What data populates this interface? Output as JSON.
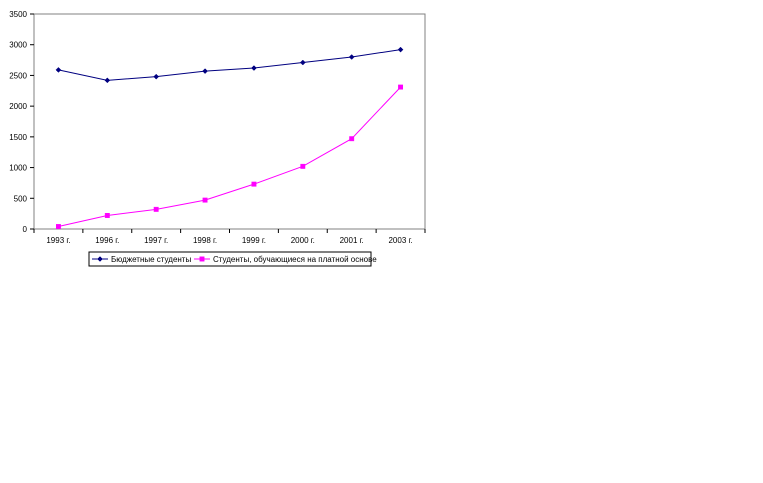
{
  "chart_data": {
    "type": "line",
    "categories": [
      "1993 г.",
      "1996 г.",
      "1997 г.",
      "1998 г.",
      "1999 г.",
      "2000 г.",
      "2001 г.",
      "2003 г."
    ],
    "series": [
      {
        "name": "Бюджетные студенты",
        "values": [
          2590,
          2420,
          2480,
          2570,
          2620,
          2710,
          2800,
          2920
        ],
        "color": "#000080",
        "marker": "diamond"
      },
      {
        "name": "Студенты, обучающиеся на платной основе",
        "values": [
          40,
          220,
          320,
          470,
          730,
          1020,
          1470,
          2310
        ],
        "color": "#ff00ff",
        "marker": "square"
      }
    ],
    "ylim": [
      0,
      3500
    ],
    "yticks": [
      0,
      500,
      1000,
      1500,
      2000,
      2500,
      3000,
      3500
    ],
    "yticklabels": [
      "0",
      "500",
      "1000",
      "1500",
      "2000",
      "2500",
      "3000",
      "3500"
    ],
    "title": "",
    "xlabel": "",
    "ylabel": "",
    "grid": false,
    "legend_position": "bottom"
  }
}
